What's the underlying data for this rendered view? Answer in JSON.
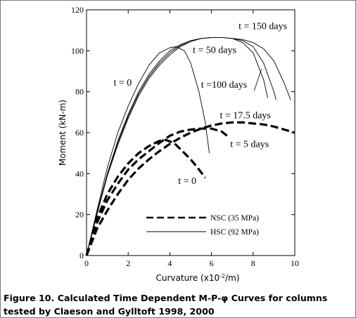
{
  "chart_data": {
    "type": "line",
    "xlabel": "Curvature (x10-2/m)",
    "xlabel_main": "Curvature (x10",
    "xlabel_sup": "-2",
    "xlabel_tail": "/m)",
    "ylabel": "Moment (kN-m)",
    "xlim": [
      0,
      10
    ],
    "ylim": [
      0,
      120
    ],
    "x_ticks": [
      "0",
      "2",
      "4",
      "6",
      "8",
      "10"
    ],
    "y_ticks": [
      "0",
      "20",
      "40",
      "60",
      "80",
      "100",
      "120"
    ],
    "grid": false,
    "legend": [
      {
        "label": "NSC (35 MPa)",
        "style": "dashed-thick"
      },
      {
        "label": "HSC (92 MPa)",
        "style": "solid-thin"
      }
    ],
    "series": [
      {
        "name": "t = 0",
        "group": "HSC",
        "points": [
          [
            0,
            0
          ],
          [
            0.5,
            22
          ],
          [
            1,
            43
          ],
          [
            1.5,
            60
          ],
          [
            2,
            73
          ],
          [
            2.5,
            84
          ],
          [
            3,
            93
          ],
          [
            3.5,
            99
          ],
          [
            4,
            101.5
          ],
          [
            4.3,
            102
          ],
          [
            4.7,
            100
          ],
          [
            5,
            94
          ],
          [
            5.4,
            80
          ],
          [
            5.7,
            65
          ],
          [
            5.9,
            50
          ]
        ]
      },
      {
        "name": "t = 50 days",
        "group": "HSC",
        "points": [
          [
            0,
            0
          ],
          [
            0.5,
            21
          ],
          [
            1,
            40
          ],
          [
            1.5,
            56
          ],
          [
            2,
            69
          ],
          [
            2.5,
            80
          ],
          [
            3,
            88.5
          ],
          [
            3.5,
            95
          ],
          [
            4,
            100
          ],
          [
            4.5,
            103
          ],
          [
            5,
            105
          ],
          [
            5.5,
            106
          ],
          [
            6,
            106.5
          ],
          [
            6.5,
            106.5
          ],
          [
            7,
            106
          ],
          [
            7.5,
            104
          ],
          [
            8,
            99
          ],
          [
            8.5,
            86
          ],
          [
            8.7,
            77
          ]
        ]
      },
      {
        "name": "t = 100 days",
        "group": "HSC",
        "points": [
          [
            0,
            0
          ],
          [
            0.5,
            20.5
          ],
          [
            1,
            39.5
          ],
          [
            1.5,
            55
          ],
          [
            2,
            68
          ],
          [
            2.5,
            79
          ],
          [
            3,
            87.5
          ],
          [
            3.5,
            94
          ],
          [
            4,
            99
          ],
          [
            4.5,
            102.5
          ],
          [
            5,
            104.5
          ],
          [
            5.5,
            106
          ],
          [
            6,
            106.5
          ],
          [
            6.5,
            106.5
          ],
          [
            7,
            106
          ],
          [
            7.5,
            105
          ],
          [
            8,
            102
          ],
          [
            8.5,
            94
          ],
          [
            9,
            80
          ],
          [
            9.1,
            76
          ]
        ]
      },
      {
        "name": "t = 150 days",
        "group": "HSC",
        "points": [
          [
            0,
            0
          ],
          [
            0.5,
            20
          ],
          [
            1,
            39
          ],
          [
            1.5,
            54
          ],
          [
            2,
            67
          ],
          [
            2.5,
            78
          ],
          [
            3,
            86.5
          ],
          [
            3.5,
            93
          ],
          [
            4,
            98
          ],
          [
            4.5,
            102
          ],
          [
            5,
            104.5
          ],
          [
            5.5,
            106
          ],
          [
            6,
            106.5
          ],
          [
            6.5,
            106.5
          ],
          [
            7,
            106
          ],
          [
            7.5,
            105.5
          ],
          [
            8,
            104
          ],
          [
            8.5,
            101
          ],
          [
            9,
            95
          ],
          [
            9.5,
            84
          ],
          [
            9.8,
            76
          ]
        ]
      },
      {
        "name": "t = 0",
        "group": "NSC",
        "points": [
          [
            0,
            0
          ],
          [
            0.5,
            18
          ],
          [
            1,
            30
          ],
          [
            1.5,
            38.5
          ],
          [
            2,
            45
          ],
          [
            2.5,
            50
          ],
          [
            3,
            53.5
          ],
          [
            3.5,
            56
          ],
          [
            3.8,
            56.5
          ],
          [
            4.2,
            55
          ],
          [
            4.5,
            52
          ],
          [
            5,
            47
          ],
          [
            5.4,
            42
          ],
          [
            5.7,
            38
          ]
        ]
      },
      {
        "name": "t = 5 days",
        "group": "NSC",
        "points": [
          [
            0,
            0
          ],
          [
            0.5,
            16
          ],
          [
            1,
            27
          ],
          [
            1.5,
            35
          ],
          [
            2,
            42
          ],
          [
            2.5,
            47
          ],
          [
            3,
            51
          ],
          [
            3.5,
            55
          ],
          [
            4,
            58.5
          ],
          [
            4.5,
            60.5
          ],
          [
            5,
            61.5
          ],
          [
            5.5,
            62
          ],
          [
            6,
            62
          ],
          [
            6.5,
            60.5
          ],
          [
            6.8,
            58
          ]
        ]
      },
      {
        "name": "t = 17.5 days",
        "group": "NSC",
        "points": [
          [
            0,
            0
          ],
          [
            0.5,
            13
          ],
          [
            1,
            22
          ],
          [
            1.5,
            30
          ],
          [
            2,
            37
          ],
          [
            2.5,
            42.5
          ],
          [
            3,
            47
          ],
          [
            3.5,
            51
          ],
          [
            4,
            54.5
          ],
          [
            4.5,
            57.5
          ],
          [
            5,
            60
          ],
          [
            5.5,
            62
          ],
          [
            6,
            63.5
          ],
          [
            6.5,
            64.5
          ],
          [
            7,
            65
          ],
          [
            7.5,
            65
          ],
          [
            8,
            64.5
          ],
          [
            8.5,
            64
          ],
          [
            9,
            63
          ],
          [
            9.5,
            61.5
          ],
          [
            10,
            60
          ]
        ]
      }
    ],
    "annotations": [
      {
        "text": "t = 150 days",
        "x": 7.3,
        "y": 110.5
      },
      {
        "text": "t = 50 days",
        "x": 5.1,
        "y": 99
      },
      {
        "text": "t =100 days",
        "x": 5.5,
        "y": 82
      },
      {
        "text": "t = 0",
        "x": 1.3,
        "y": 83
      },
      {
        "text": "t = 17.5 days",
        "x": 6.4,
        "y": 67
      },
      {
        "text": "t = 5 days",
        "x": 6.9,
        "y": 53
      },
      {
        "text": "t = 0",
        "x": 4.4,
        "y": 35
      }
    ]
  },
  "caption": {
    "line1": "Figure 10. Calculated Time Dependent M-P-φ Curves for columns",
    "line2": "tested by Claeson and Gylltoft 1998, 2000"
  }
}
